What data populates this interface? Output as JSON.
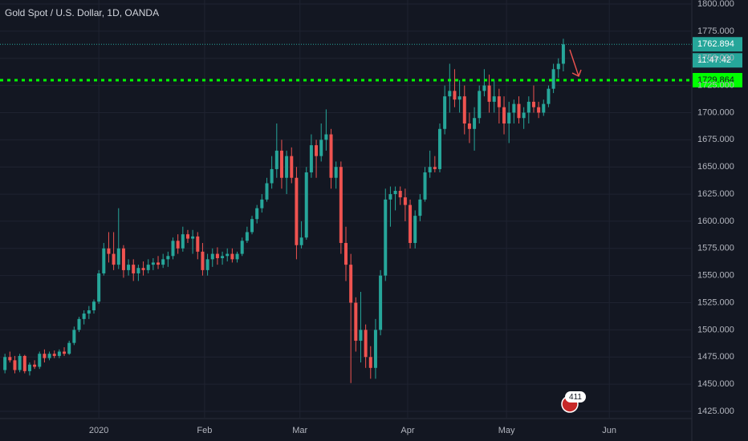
{
  "chart_data": {
    "type": "candlestick",
    "title": "Gold Spot / U.S. Dollar, 1D, OANDA",
    "up_color": "#26a69a",
    "down_color": "#ef5350",
    "grid": true,
    "xlim": [
      0,
      140
    ],
    "xticks": [
      {
        "value": 20,
        "label": "2020"
      },
      {
        "value": 41.4,
        "label": "Feb"
      },
      {
        "value": 60.7,
        "label": "Mar"
      },
      {
        "value": 82.5,
        "label": "Apr"
      },
      {
        "value": 102.5,
        "label": "May"
      },
      {
        "value": 123.3,
        "label": "Jun"
      }
    ],
    "ylim": [
      1425,
      1800
    ],
    "yticks": [
      {
        "value": 1425,
        "label": "1425.000"
      },
      {
        "value": 1450,
        "label": "1450.000"
      },
      {
        "value": 1475,
        "label": "1475.000"
      },
      {
        "value": 1500,
        "label": "1500.000"
      },
      {
        "value": 1525,
        "label": "1525.000"
      },
      {
        "value": 1550,
        "label": "1550.000"
      },
      {
        "value": 1575,
        "label": "1575.000"
      },
      {
        "value": 1600,
        "label": "1600.000"
      },
      {
        "value": 1625,
        "label": "1625.000"
      },
      {
        "value": 1650,
        "label": "1650.000"
      },
      {
        "value": 1675,
        "label": "1675.000"
      },
      {
        "value": 1700,
        "label": "1700.000"
      },
      {
        "value": 1725,
        "label": "1725.000"
      },
      {
        "value": 1750,
        "label": "1750.000"
      },
      {
        "value": 1775,
        "label": "1775.000"
      },
      {
        "value": 1800,
        "label": "1800.000"
      }
    ],
    "x": [
      1,
      2,
      3,
      4,
      5,
      6,
      7,
      8,
      9,
      10,
      11,
      12,
      13,
      14,
      15,
      16,
      17,
      18,
      19,
      20,
      21,
      22,
      23,
      24,
      25,
      26,
      27,
      28,
      29,
      30,
      31,
      32,
      33,
      34,
      35,
      36,
      37,
      38,
      39,
      40,
      41,
      42,
      43,
      44,
      45,
      46,
      47,
      48,
      49,
      50,
      51,
      52,
      53,
      54,
      55,
      56,
      57,
      58,
      59,
      60,
      61,
      62,
      63,
      64,
      65,
      66,
      67,
      68,
      69,
      70,
      71,
      72,
      73,
      74,
      75,
      76,
      77,
      78,
      79,
      80,
      81,
      82,
      83,
      84,
      85,
      86,
      87,
      88,
      89,
      90,
      91,
      92,
      93,
      94,
      95,
      96,
      97,
      98,
      99,
      100,
      101,
      102,
      103,
      104,
      105,
      106,
      107,
      108,
      109,
      110,
      111,
      112,
      113,
      114
    ],
    "ohlc": [
      [
        1463,
        1478,
        1460,
        1475
      ],
      [
        1475,
        1480,
        1470,
        1472
      ],
      [
        1472,
        1476,
        1460,
        1463
      ],
      [
        1463,
        1478,
        1461,
        1476
      ],
      [
        1476,
        1477,
        1460,
        1462
      ],
      [
        1462,
        1470,
        1458,
        1468
      ],
      [
        1468,
        1472,
        1464,
        1466
      ],
      [
        1466,
        1480,
        1464,
        1478
      ],
      [
        1478,
        1482,
        1470,
        1474
      ],
      [
        1474,
        1480,
        1472,
        1478
      ],
      [
        1478,
        1481,
        1474,
        1476
      ],
      [
        1476,
        1482,
        1474,
        1480
      ],
      [
        1480,
        1484,
        1476,
        1478
      ],
      [
        1478,
        1490,
        1477,
        1488
      ],
      [
        1488,
        1503,
        1486,
        1500
      ],
      [
        1500,
        1512,
        1498,
        1510
      ],
      [
        1510,
        1518,
        1505,
        1515
      ],
      [
        1515,
        1522,
        1510,
        1518
      ],
      [
        1518,
        1528,
        1515,
        1526
      ],
      [
        1526,
        1555,
        1524,
        1552
      ],
      [
        1552,
        1580,
        1550,
        1575
      ],
      [
        1575,
        1590,
        1562,
        1570
      ],
      [
        1570,
        1590,
        1555,
        1560
      ],
      [
        1560,
        1612,
        1556,
        1575
      ],
      [
        1575,
        1578,
        1548,
        1555
      ],
      [
        1555,
        1565,
        1550,
        1560
      ],
      [
        1560,
        1565,
        1545,
        1552
      ],
      [
        1552,
        1560,
        1545,
        1557
      ],
      [
        1557,
        1563,
        1550,
        1555
      ],
      [
        1555,
        1565,
        1552,
        1560
      ],
      [
        1560,
        1566,
        1555,
        1562
      ],
      [
        1562,
        1568,
        1556,
        1560
      ],
      [
        1560,
        1570,
        1557,
        1565
      ],
      [
        1565,
        1572,
        1558,
        1568
      ],
      [
        1568,
        1585,
        1565,
        1582
      ],
      [
        1582,
        1588,
        1570,
        1575
      ],
      [
        1575,
        1595,
        1572,
        1588
      ],
      [
        1588,
        1592,
        1580,
        1584
      ],
      [
        1584,
        1592,
        1570,
        1586
      ],
      [
        1586,
        1590,
        1565,
        1572
      ],
      [
        1572,
        1580,
        1550,
        1555
      ],
      [
        1555,
        1570,
        1550,
        1565
      ],
      [
        1565,
        1575,
        1558,
        1570
      ],
      [
        1570,
        1576,
        1560,
        1566
      ],
      [
        1566,
        1572,
        1560,
        1568
      ],
      [
        1568,
        1575,
        1563,
        1570
      ],
      [
        1570,
        1575,
        1562,
        1565
      ],
      [
        1565,
        1572,
        1562,
        1570
      ],
      [
        1570,
        1585,
        1568,
        1582
      ],
      [
        1582,
        1595,
        1580,
        1590
      ],
      [
        1590,
        1605,
        1588,
        1602
      ],
      [
        1602,
        1615,
        1598,
        1612
      ],
      [
        1612,
        1625,
        1608,
        1620
      ],
      [
        1620,
        1640,
        1618,
        1635
      ],
      [
        1635,
        1660,
        1630,
        1648
      ],
      [
        1648,
        1690,
        1640,
        1665
      ],
      [
        1665,
        1675,
        1630,
        1640
      ],
      [
        1640,
        1665,
        1625,
        1660
      ],
      [
        1660,
        1668,
        1635,
        1640
      ],
      [
        1640,
        1650,
        1565,
        1578
      ],
      [
        1578,
        1600,
        1575,
        1585
      ],
      [
        1585,
        1650,
        1583,
        1645
      ],
      [
        1645,
        1680,
        1640,
        1670
      ],
      [
        1670,
        1675,
        1640,
        1660
      ],
      [
        1660,
        1690,
        1655,
        1675
      ],
      [
        1675,
        1703,
        1665,
        1680
      ],
      [
        1680,
        1685,
        1630,
        1640
      ],
      [
        1640,
        1655,
        1630,
        1650
      ],
      [
        1650,
        1655,
        1570,
        1580
      ],
      [
        1580,
        1595,
        1545,
        1560
      ],
      [
        1560,
        1570,
        1451,
        1525
      ],
      [
        1525,
        1530,
        1480,
        1490
      ],
      [
        1490,
        1535,
        1470,
        1500
      ],
      [
        1500,
        1505,
        1465,
        1475
      ],
      [
        1475,
        1485,
        1455,
        1465
      ],
      [
        1465,
        1510,
        1455,
        1500
      ],
      [
        1500,
        1555,
        1495,
        1550
      ],
      [
        1550,
        1630,
        1545,
        1620
      ],
      [
        1620,
        1632,
        1595,
        1625
      ],
      [
        1625,
        1632,
        1610,
        1628
      ],
      [
        1628,
        1632,
        1615,
        1622
      ],
      [
        1622,
        1630,
        1600,
        1615
      ],
      [
        1615,
        1620,
        1575,
        1580
      ],
      [
        1580,
        1610,
        1575,
        1605
      ],
      [
        1605,
        1625,
        1600,
        1620
      ],
      [
        1620,
        1650,
        1618,
        1645
      ],
      [
        1645,
        1665,
        1640,
        1650
      ],
      [
        1650,
        1660,
        1645,
        1648
      ],
      [
        1648,
        1690,
        1645,
        1685
      ],
      [
        1685,
        1725,
        1680,
        1715
      ],
      [
        1715,
        1745,
        1700,
        1720
      ],
      [
        1720,
        1740,
        1705,
        1712
      ],
      [
        1712,
        1730,
        1700,
        1715
      ],
      [
        1715,
        1725,
        1680,
        1690
      ],
      [
        1690,
        1700,
        1672,
        1685
      ],
      [
        1685,
        1705,
        1665,
        1695
      ],
      [
        1695,
        1725,
        1690,
        1720
      ],
      [
        1720,
        1740,
        1715,
        1725
      ],
      [
        1725,
        1735,
        1700,
        1710
      ],
      [
        1710,
        1730,
        1700,
        1715
      ],
      [
        1715,
        1722,
        1690,
        1705
      ],
      [
        1705,
        1715,
        1680,
        1690
      ],
      [
        1690,
        1710,
        1672,
        1700
      ],
      [
        1700,
        1712,
        1690,
        1708
      ],
      [
        1708,
        1715,
        1690,
        1695
      ],
      [
        1695,
        1705,
        1685,
        1700
      ],
      [
        1700,
        1715,
        1690,
        1710
      ],
      [
        1710,
        1725,
        1700,
        1705
      ],
      [
        1705,
        1710,
        1695,
        1700
      ],
      [
        1700,
        1712,
        1697,
        1708
      ],
      [
        1708,
        1725,
        1705,
        1722
      ],
      [
        1722,
        1745,
        1718,
        1740
      ],
      [
        1740,
        1750,
        1732,
        1745
      ],
      [
        1745,
        1768,
        1738,
        1762.894
      ]
    ],
    "last_price": 1762.894,
    "countdown": "11:47:42",
    "level_line": 1729.864,
    "level_color": "#00ff00",
    "event_badge": "411"
  }
}
